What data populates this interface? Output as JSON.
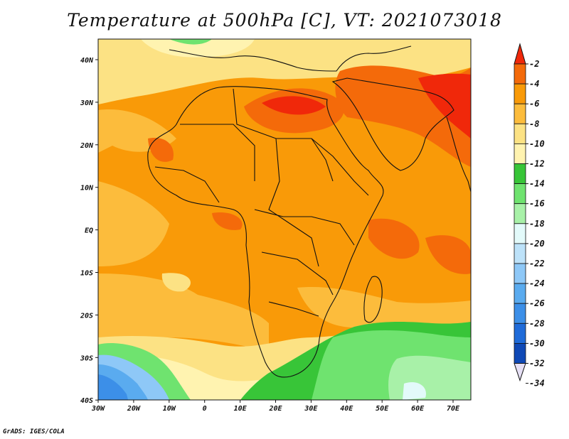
{
  "title": "Temperature at 500hPa [C], VT: 2021073018",
  "credit": "GrADS: IGES/COLA",
  "axes": {
    "lon_labels": [
      "30W",
      "20W",
      "10W",
      "0",
      "10E",
      "20E",
      "30E",
      "40E",
      "50E",
      "60E",
      "70E"
    ],
    "lat_labels": [
      "40N",
      "30N",
      "20N",
      "10N",
      "EQ",
      "10S",
      "20S",
      "30S",
      "40S"
    ]
  },
  "colorbar": {
    "labels": [
      "-2",
      "-4",
      "-6",
      "-8",
      "-10",
      "-12",
      "-14",
      "-16",
      "-18",
      "-20",
      "-22",
      "-24",
      "-26",
      "-28",
      "-30",
      "-32",
      "-34"
    ],
    "colors": [
      "#f0280a",
      "#f46a0a",
      "#f99a08",
      "#fcbc3c",
      "#fce284",
      "#fff3b0",
      "#38c538",
      "#6fe36f",
      "#a8f1a8",
      "#e3fafa",
      "#bde2f9",
      "#8ec8f7",
      "#5aabef",
      "#3c8fe8",
      "#1f6bd9",
      "#0f49b6",
      "#0b1d78"
    ]
  },
  "map": {
    "region": "Africa and Middle East",
    "lon_range": [
      -30,
      75
    ],
    "lat_range": [
      -40,
      44
    ]
  }
}
